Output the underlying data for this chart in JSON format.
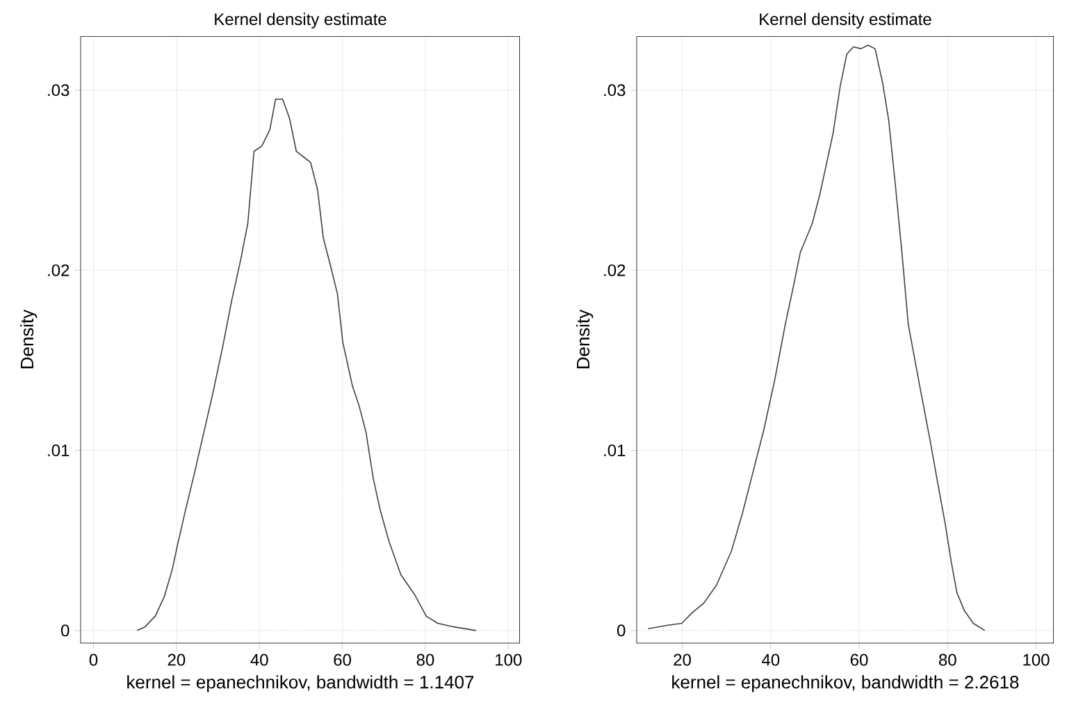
{
  "chart_data": [
    {
      "type": "line",
      "title": "Kernel density estimate",
      "xlabel": "kernel = epanechnikov, bandwidth = 1.1407",
      "ylabel": "Density",
      "grid": true,
      "marker": "none",
      "line_style": "solid",
      "xlim": [
        -3.1,
        102.8
      ],
      "ylim": [
        -0.0007,
        0.033
      ],
      "xticks": [
        0,
        20,
        40,
        60,
        80,
        100
      ],
      "yticks": [
        0,
        {
          "value": 0.01,
          "label": ".01"
        },
        {
          "value": 0.02,
          "label": ".02"
        },
        {
          "value": 0.03,
          "label": ".03"
        }
      ],
      "series": [
        {
          "color": "#404040",
          "x": [
            10.5,
            12.4,
            14.9,
            17.1,
            19,
            20.4,
            22.1,
            24.4,
            26.6,
            28.8,
            31.1,
            33.3,
            35.5,
            37.2,
            38.7,
            40.6,
            42.5,
            43.9,
            45.6,
            47.3,
            48.9,
            50.6,
            52.3,
            54,
            55.4,
            57.3,
            58.8,
            60.1,
            62.4,
            64,
            65.7,
            67.4,
            69.1,
            71.3,
            74.1,
            77.4,
            80.2,
            83,
            86.9,
            92.2
          ],
          "values": [
            0,
            0.0002,
            0.0008,
            0.0019,
            0.0034,
            0.0049,
            0.0066,
            0.0088,
            0.011,
            0.0132,
            0.0157,
            0.0183,
            0.0206,
            0.0226,
            0.0266,
            0.0269,
            0.0278,
            0.0295,
            0.0295,
            0.0284,
            0.0266,
            0.0263,
            0.026,
            0.0245,
            0.0218,
            0.0201,
            0.0187,
            0.016,
            0.0136,
            0.0125,
            0.011,
            0.0085,
            0.0067,
            0.0049,
            0.0031,
            0.002,
            0.0008,
            0.0004,
            0.0002,
            0
          ]
        }
      ]
    },
    {
      "type": "line",
      "title": "Kernel density estimate",
      "xlabel": "kernel = epanechnikov, bandwidth = 2.2618",
      "ylabel": "Density",
      "grid": true,
      "marker": "none",
      "line_style": "solid",
      "xlim": [
        9.7,
        104
      ],
      "ylim": [
        -0.0007,
        0.033
      ],
      "xticks": [
        20,
        40,
        60,
        80,
        100
      ],
      "yticks": [
        0,
        {
          "value": 0.01,
          "label": ".01"
        },
        {
          "value": 0.02,
          "label": ".02"
        },
        {
          "value": 0.03,
          "label": ".03"
        }
      ],
      "series": [
        {
          "color": "#404040",
          "x": [
            12.3,
            17,
            19.9,
            22.3,
            24.8,
            27.7,
            31.1,
            33.6,
            36,
            38.4,
            40.9,
            43.3,
            45.3,
            46.7,
            49.4,
            51.1,
            54.1,
            55.7,
            57.2,
            58.7,
            60.4,
            62,
            63.6,
            65.3,
            66.7,
            68.2,
            69.7,
            71.1,
            73.6,
            76,
            77.9,
            79.4,
            80.9,
            82.1,
            83.8,
            85.8,
            88.4
          ],
          "values": [
            0.0001,
            0.0003,
            0.0004,
            0.001,
            0.0015,
            0.0025,
            0.0044,
            0.0065,
            0.0088,
            0.0111,
            0.0139,
            0.017,
            0.0193,
            0.021,
            0.0226,
            0.0242,
            0.0276,
            0.0302,
            0.032,
            0.0324,
            0.0323,
            0.0325,
            0.0323,
            0.0304,
            0.0283,
            0.0247,
            0.0209,
            0.017,
            0.0137,
            0.0106,
            0.008,
            0.006,
            0.0037,
            0.0021,
            0.0011,
            0.0004,
            0
          ]
        }
      ]
    }
  ]
}
